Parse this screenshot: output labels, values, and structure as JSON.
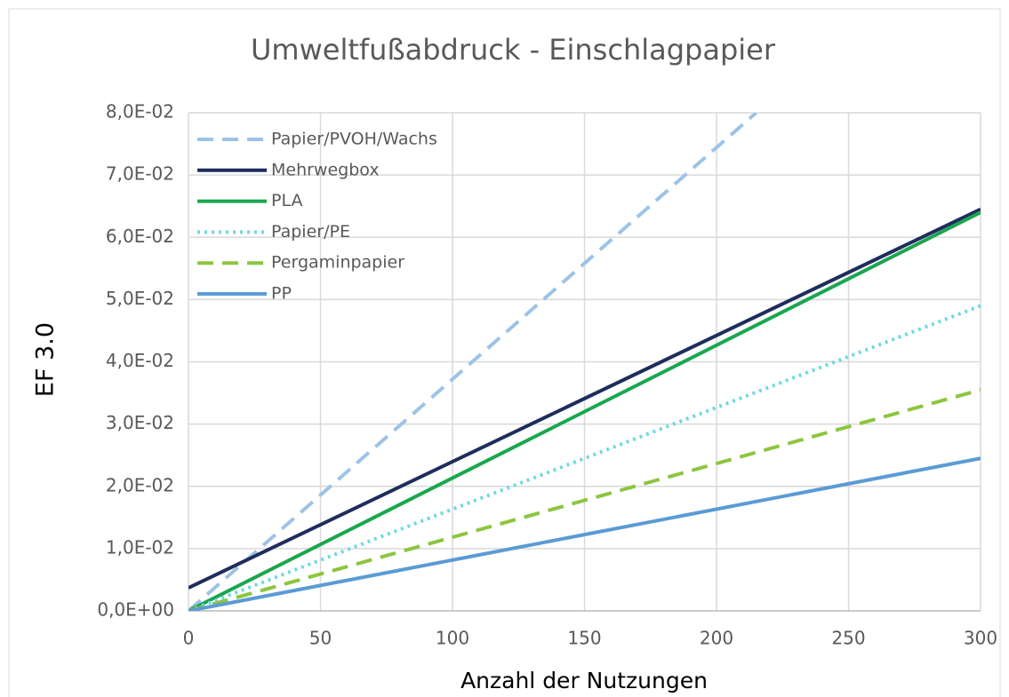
{
  "chart_data": {
    "type": "line",
    "title": "Umweltfußabdruck - Einschlagpapier",
    "xlabel": "Anzahl der Nutzungen",
    "ylabel": "EF 3.0",
    "xlim": [
      0,
      300
    ],
    "xticks": [
      0,
      50,
      100,
      150,
      200,
      250,
      300
    ],
    "ylim": [
      0,
      0.08
    ],
    "yticks": [
      {
        "value": 0,
        "label": "0,0E+00"
      },
      {
        "value": 0.01,
        "label": "1,0E-02"
      },
      {
        "value": 0.02,
        "label": "2,0E-02"
      },
      {
        "value": 0.03,
        "label": "3,0E-02"
      },
      {
        "value": 0.04,
        "label": "4,0E-02"
      },
      {
        "value": 0.05,
        "label": "5,0E-02"
      },
      {
        "value": 0.06,
        "label": "6,0E-02"
      },
      {
        "value": 0.07,
        "label": "7,0E-02"
      },
      {
        "value": 0.08,
        "label": "8,0E-02"
      }
    ],
    "grid": true,
    "legend": "upper left",
    "series": [
      {
        "name": "Papier/PVOH/Wachs",
        "color": "#9dc3e6",
        "dash": "dashed",
        "x": [
          0,
          215
        ],
        "values": [
          0,
          0.08
        ]
      },
      {
        "name": "Mehrwegbox",
        "color": "#1f2d5c",
        "dash": "solid",
        "x": [
          0,
          300
        ],
        "values": [
          0.0037,
          0.0645
        ]
      },
      {
        "name": "PLA",
        "color": "#1aa650",
        "dash": "solid",
        "x": [
          0,
          300
        ],
        "values": [
          0,
          0.064
        ]
      },
      {
        "name": "Papier/PE",
        "color": "#6fd9e0",
        "dash": "dotted",
        "x": [
          0,
          300
        ],
        "values": [
          0,
          0.049
        ]
      },
      {
        "name": "Pergaminpapier",
        "color": "#8cc63f",
        "dash": "dashed",
        "x": [
          0,
          300
        ],
        "values": [
          0,
          0.0355
        ]
      },
      {
        "name": "PP",
        "color": "#5b9bd5",
        "dash": "solid",
        "x": [
          0,
          300
        ],
        "values": [
          0,
          0.0245
        ]
      }
    ]
  }
}
